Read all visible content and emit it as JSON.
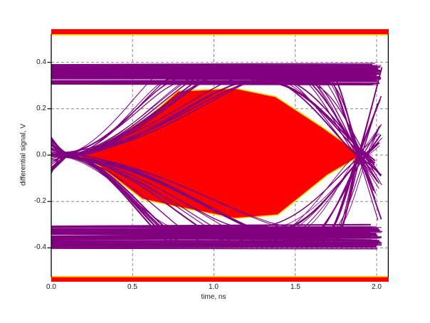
{
  "chart_data": {
    "type": "line",
    "subtype": "eye_diagram",
    "xlabel": "time, ns",
    "ylabel": "differential signal, V",
    "xlim": [
      0,
      2.0745
    ],
    "ylim": [
      -0.5246,
      0.5215
    ],
    "x_ticks": [
      0,
      0.5,
      1.0,
      1.5,
      2.0
    ],
    "x_tick_labels": [
      "0.0",
      "0.5",
      "1.0",
      "1.5",
      "2.0"
    ],
    "y_ticks": [
      0.4,
      0.2,
      0.0,
      -0.2,
      -0.4
    ],
    "y_tick_labels": [
      "0.4",
      "0.2",
      "0.0",
      "-0.2",
      "-0.4"
    ],
    "grid": true,
    "grid_style": "dashed",
    "legend": null,
    "colors": {
      "trace": "#800080",
      "mask_fill": "#FF0000",
      "mask_edge": "#FFD700",
      "grid": "#888888",
      "axis": "#000000",
      "background": "#FFFFFF",
      "tick_text": "#1a1a1a"
    },
    "signal": {
      "rails_V": {
        "top": [
          0.305,
          0.39
        ],
        "bottom": [
          -0.4,
          -0.307
        ]
      },
      "crossing_level_V": 0.0,
      "crossings_ns": [
        0.07,
        1.93
      ],
      "data_span_ns": [
        0.0,
        2.03
      ]
    },
    "eye_opening_polygon": [
      [
        0.153,
        0.0
      ],
      [
        0.438,
        0.092
      ],
      [
        0.604,
        0.169
      ],
      [
        0.779,
        0.276
      ],
      [
        1.129,
        0.288
      ],
      [
        1.379,
        0.252
      ],
      [
        1.654,
        0.126
      ],
      [
        1.908,
        0.0
      ],
      [
        1.698,
        -0.086
      ],
      [
        1.392,
        -0.258
      ],
      [
        1.129,
        -0.273
      ],
      [
        0.779,
        -0.224
      ],
      [
        0.56,
        -0.19
      ],
      [
        0.298,
        -0.049
      ]
    ],
    "mask_limit_bars_V": {
      "top": [
        0.5215,
        0.545
      ],
      "bottom": [
        -0.547,
        -0.5246
      ]
    }
  }
}
